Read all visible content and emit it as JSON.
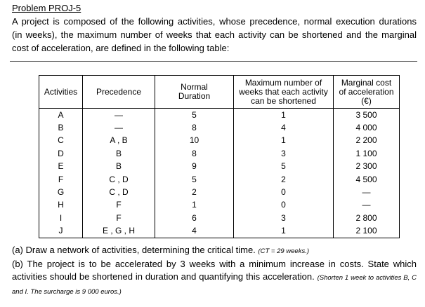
{
  "header": {
    "title": "Problem PROJ-5"
  },
  "intro": {
    "lines": [
      "A project is composed of the following activities, whose precedence, normal execution durations",
      "(in weeks), the maximum number of weeks that each activity can be shortened and the marginal",
      "cost of acceleration, are defined in the following table:"
    ]
  },
  "table": {
    "header": [
      [
        "Activities"
      ],
      [
        "Precedence"
      ],
      [
        "Normal",
        "Duration"
      ],
      [
        "Maximum number of",
        "weeks that each activity",
        "can be shortened"
      ],
      [
        "Marginal cost",
        "of acceleration",
        "(€)"
      ]
    ],
    "rows": [
      [
        "A",
        "—",
        5,
        1,
        "3 500"
      ],
      [
        "B",
        "—",
        8,
        4,
        "4 000"
      ],
      [
        "C",
        "A , B",
        10,
        1,
        "2 200"
      ],
      [
        "D",
        "B",
        8,
        3,
        "1 100"
      ],
      [
        "E",
        "B",
        9,
        5,
        "2 300"
      ],
      [
        "F",
        "C , D",
        5,
        2,
        "4 500"
      ],
      [
        "G",
        "C , D",
        2,
        0,
        "—"
      ],
      [
        "H",
        "F",
        1,
        0,
        "—"
      ],
      [
        "I",
        "F",
        6,
        3,
        "2 800"
      ],
      [
        "J",
        "E , G , H",
        4,
        1,
        "2 100"
      ]
    ]
  },
  "questions": [
    {
      "text": "(a) Draw a network of activities, determining the critical time.",
      "answer": "(CT = 29 weeks.)"
    },
    {
      "text": "(b) The project is to be accelerated by 3 weeks with a minimum increase in costs. State which activities should be shortened in duration and quantifying this acceleration.",
      "answer": "(Shorten 1 week to activities B, C and I. The surcharge is 9 000 euros.)"
    }
  ]
}
